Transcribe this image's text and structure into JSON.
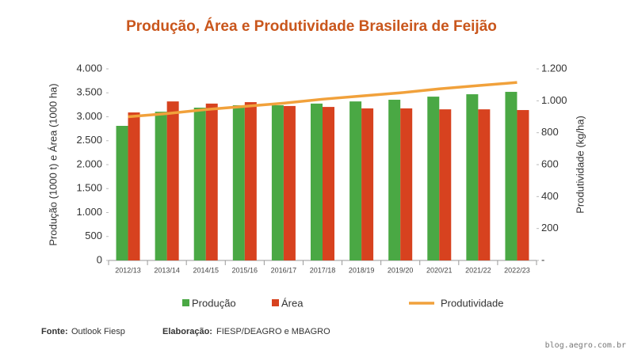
{
  "chart_data": {
    "type": "bar-line",
    "title": "Produção, Área e Produtividade Brasileira de Feijão",
    "y_label": "Produção (1000 t) e Área (1000 ha)",
    "y2_label": "Produtividade (kg/ha)",
    "categories": [
      "2012/13",
      "2013/14",
      "2014/15",
      "2015/16",
      "2016/17",
      "2017/18",
      "2018/19",
      "2019/20",
      "2020/21",
      "2021/22",
      "2022/23"
    ],
    "series": [
      {
        "name": "Produção",
        "color": "#4aa844",
        "kind": "bar",
        "values": [
          2810,
          3105,
          3190,
          3240,
          3240,
          3275,
          3320,
          3355,
          3420,
          3470,
          3520
        ]
      },
      {
        "name": "Área",
        "color": "#d7421f",
        "kind": "bar",
        "values": [
          3090,
          3320,
          3275,
          3305,
          3225,
          3205,
          3175,
          3175,
          3155,
          3155,
          3140
        ]
      },
      {
        "name": "Produtividade",
        "color": "#f1a13b",
        "kind": "line",
        "axis": "y2",
        "values": [
          900,
          920,
          945,
          965,
          985,
          1010,
          1030,
          1050,
          1075,
          1095,
          1115
        ]
      }
    ],
    "ylim": [
      0,
      4000
    ],
    "yticks": [
      0,
      500,
      {
        "value": 1000,
        "label": "1.000"
      },
      {
        "value": 1500,
        "label": "1.500"
      },
      {
        "value": 2000,
        "label": "2.000"
      },
      {
        "value": 2500,
        "label": "2.500"
      },
      {
        "value": 3000,
        "label": "3.000"
      },
      {
        "value": 3500,
        "label": "3.500"
      },
      {
        "value": 4000,
        "label": "4.000"
      }
    ],
    "y2lim": [
      0,
      1200
    ],
    "y2ticks": [
      {
        "value": 0,
        "label": "-"
      },
      200,
      400,
      600,
      800,
      {
        "value": 1000,
        "label": "1.000"
      },
      {
        "value": 1200,
        "label": "1.200"
      }
    ],
    "grid": false,
    "legend": "bottom"
  },
  "footer": {
    "source_label": "Fonte:",
    "source": "Outlook Fiesp",
    "credit_label": "Elaboração:",
    "credit": "FIESP/DEAGRO e MBAGRO"
  },
  "watermark": "blog.aegro.com.br"
}
